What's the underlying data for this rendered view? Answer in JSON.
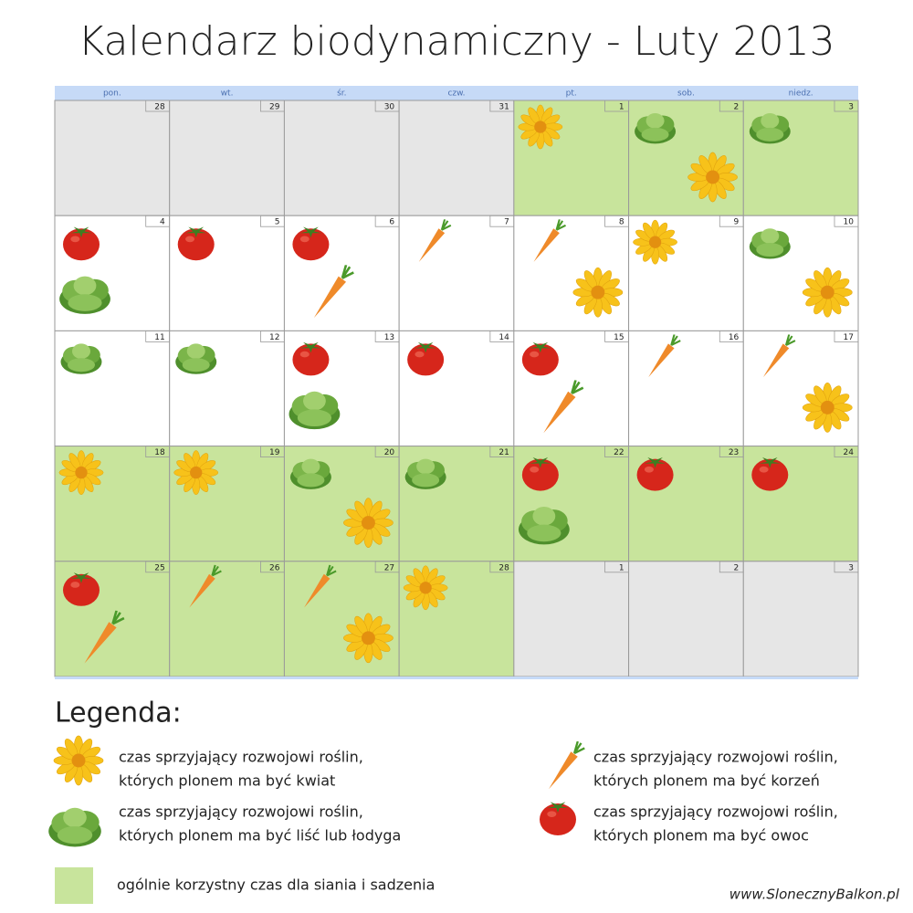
{
  "title": "Kalendarz biodynamiczny - Luty 2013",
  "weekdays": [
    "pon.",
    "wt.",
    "śr.",
    "czw.",
    "pt.",
    "sob.",
    "niedz."
  ],
  "weeks": [
    [
      {
        "day": 28,
        "fill": "#e6e6e6",
        "icons": []
      },
      {
        "day": 29,
        "fill": "#e6e6e6",
        "icons": []
      },
      {
        "day": 30,
        "fill": "#e6e6e6",
        "icons": []
      },
      {
        "day": 31,
        "fill": "#e6e6e6",
        "icons": []
      },
      {
        "day": 1,
        "fill": "#c8e49c",
        "icons": [
          0
        ]
      },
      {
        "day": 2,
        "fill": "#c8e49c",
        "icons": [
          1,
          0
        ]
      },
      {
        "day": 3,
        "fill": "#c8e49c",
        "icons": [
          1
        ]
      }
    ],
    [
      {
        "day": 4,
        "fill": "#ffffff",
        "icons": [
          3,
          1
        ]
      },
      {
        "day": 5,
        "fill": "#ffffff",
        "icons": [
          3
        ]
      },
      {
        "day": 6,
        "fill": "#ffffff",
        "icons": [
          3,
          2
        ]
      },
      {
        "day": 7,
        "fill": "#ffffff",
        "icons": [
          2
        ]
      },
      {
        "day": 8,
        "fill": "#ffffff",
        "icons": [
          2,
          0
        ]
      },
      {
        "day": 9,
        "fill": "#ffffff",
        "icons": [
          0
        ]
      },
      {
        "day": 10,
        "fill": "#ffffff",
        "icons": [
          1,
          0
        ]
      }
    ],
    [
      {
        "day": 11,
        "fill": "#ffffff",
        "icons": [
          1
        ]
      },
      {
        "day": 12,
        "fill": "#ffffff",
        "icons": [
          1
        ]
      },
      {
        "day": 13,
        "fill": "#ffffff",
        "icons": [
          3,
          1
        ]
      },
      {
        "day": 14,
        "fill": "#ffffff",
        "icons": [
          3
        ]
      },
      {
        "day": 15,
        "fill": "#ffffff",
        "icons": [
          3,
          2
        ]
      },
      {
        "day": 16,
        "fill": "#ffffff",
        "icons": [
          2
        ]
      },
      {
        "day": 17,
        "fill": "#ffffff",
        "icons": [
          2,
          0
        ]
      }
    ],
    [
      {
        "day": 18,
        "fill": "#c8e49c",
        "icons": [
          0
        ]
      },
      {
        "day": 19,
        "fill": "#c8e49c",
        "icons": [
          0
        ]
      },
      {
        "day": 20,
        "fill": "#c8e49c",
        "icons": [
          1,
          0
        ]
      },
      {
        "day": 21,
        "fill": "#c8e49c",
        "icons": [
          1
        ]
      },
      {
        "day": 22,
        "fill": "#c8e49c",
        "icons": [
          3,
          1
        ]
      },
      {
        "day": 23,
        "fill": "#c8e49c",
        "icons": [
          3
        ]
      },
      {
        "day": 24,
        "fill": "#c8e49c",
        "icons": [
          3
        ]
      }
    ],
    [
      {
        "day": 25,
        "fill": "#c8e49c",
        "icons": [
          3,
          2
        ]
      },
      {
        "day": 26,
        "fill": "#c8e49c",
        "icons": [
          2
        ]
      },
      {
        "day": 27,
        "fill": "#c8e49c",
        "icons": [
          2,
          0
        ]
      },
      {
        "day": 28,
        "fill": "#c8e49c",
        "icons": [
          0
        ]
      },
      {
        "day": 1,
        "fill": "#e6e6e6",
        "icons": []
      },
      {
        "day": 2,
        "fill": "#e6e6e6",
        "icons": []
      },
      {
        "day": 3,
        "fill": "#e6e6e6",
        "icons": []
      }
    ]
  ],
  "legend": {
    "title": "Legenda:",
    "items": [
      {
        "lines": [
          "czas sprzyjający rozwojowi roślin,",
          "których plonem ma być kwiat"
        ]
      },
      {
        "lines": [
          "czas sprzyjający rozwojowi roślin,",
          "których plonem ma być liść lub łodyga"
        ]
      },
      {
        "lines": [
          "czas sprzyjający rozwojowi roślin,",
          "których plonem ma być korzeń"
        ]
      },
      {
        "lines": [
          "czas sprzyjający rozwojowi roślin,",
          "których plonem ma być owoc"
        ]
      }
    ],
    "general": {
      "text": "ogólnie korzystny czas dla siania i sadzenia",
      "color": "#c8e49c"
    }
  },
  "footer": "www.SlonecznyBalkon.pl"
}
